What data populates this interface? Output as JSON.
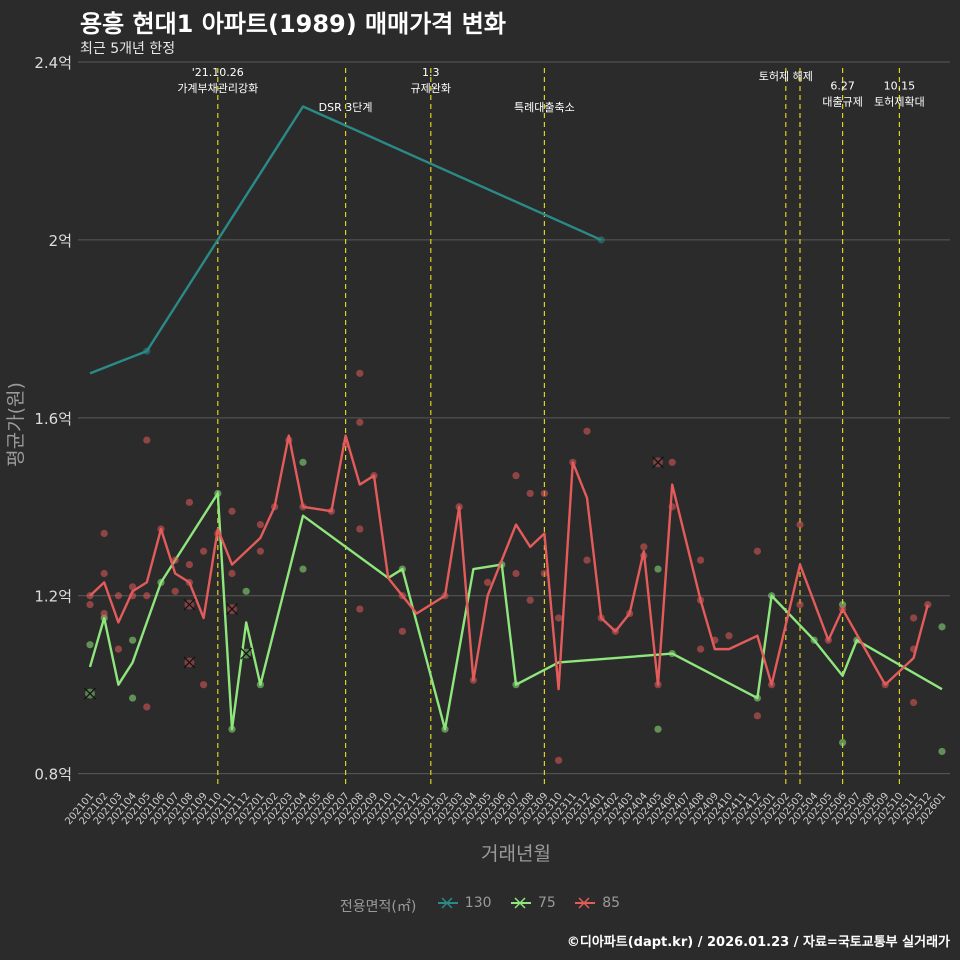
{
  "title": "용흥 현대1 아파트(1989) 매매가격 변화",
  "subtitle": "최근 5개년 한정",
  "caption": "©디아파트(dapt.kr) / 2026.01.23 / 자료=국토교통부 실거래가",
  "colors": {
    "background": "#2b2b2b",
    "grid": "#5a5a5a",
    "s130": "#2a8a87",
    "s75": "#8ee67c",
    "s85": "#e35b5b",
    "event_line": "#e0d020"
  },
  "chart_data": {
    "type": "line",
    "title": "용흥 현대1 아파트(1989) 매매가격 변화",
    "subtitle": "최근 5개년 한정",
    "xlabel": "거래년월",
    "ylabel": "평균가(원)",
    "ylim": [
      0.77,
      2.4
    ],
    "yticks": [
      0.8,
      1.2,
      1.6,
      2.0,
      2.4
    ],
    "ytick_labels": [
      "0.8억",
      "1.2억",
      "1.6억",
      "2억",
      "2.4억"
    ],
    "categories": [
      "202101",
      "202102",
      "202103",
      "202104",
      "202105",
      "202106",
      "202107",
      "202108",
      "202109",
      "202110",
      "202111",
      "202112",
      "202201",
      "202202",
      "202203",
      "202204",
      "202205",
      "202206",
      "202207",
      "202208",
      "202209",
      "202210",
      "202211",
      "202212",
      "202301",
      "202302",
      "202303",
      "202304",
      "202305",
      "202306",
      "202307",
      "202308",
      "202309",
      "202310",
      "202311",
      "202312",
      "202401",
      "202402",
      "202403",
      "202404",
      "202405",
      "202406",
      "202407",
      "202408",
      "202409",
      "202410",
      "202411",
      "202412",
      "202501",
      "202502",
      "202503",
      "202504",
      "202505",
      "202506",
      "202507",
      "202508",
      "202509",
      "202510",
      "202511",
      "202512",
      "202601"
    ],
    "legend_title": "전용면적(㎡)",
    "series": [
      {
        "name": "130",
        "color": "#2a8a87",
        "line": [
          [
            "202101",
            1.7
          ],
          [
            "202105",
            1.75
          ],
          [
            "202204",
            2.3
          ],
          [
            "202401",
            2.0
          ]
        ],
        "points": [
          [
            "202105",
            1.75
          ],
          [
            "202401",
            2.0
          ]
        ],
        "crosses": []
      },
      {
        "name": "75",
        "color": "#8ee67c",
        "line": [
          [
            "202101",
            1.04
          ],
          [
            "202102",
            1.15
          ],
          [
            "202103",
            1.0
          ],
          [
            "202104",
            1.05
          ],
          [
            "202106",
            1.23
          ],
          [
            "202110",
            1.43
          ],
          [
            "202111",
            0.9
          ],
          [
            "202112",
            1.14
          ],
          [
            "202201",
            1.0
          ],
          [
            "202204",
            1.38
          ],
          [
            "202210",
            1.24
          ],
          [
            "202211",
            1.26
          ],
          [
            "202302",
            0.9
          ],
          [
            "202304",
            1.26
          ],
          [
            "202306",
            1.27
          ],
          [
            "202307",
            1.0
          ],
          [
            "202310",
            1.05
          ],
          [
            "202406",
            1.07
          ],
          [
            "202412",
            0.97
          ],
          [
            "202501",
            1.2
          ],
          [
            "202504",
            1.1
          ],
          [
            "202506",
            1.02
          ],
          [
            "202507",
            1.1
          ],
          [
            "202601",
            0.99
          ]
        ],
        "points": [
          [
            "202101",
            1.09
          ],
          [
            "202102",
            1.15
          ],
          [
            "202104",
            1.1
          ],
          [
            "202104",
            0.97
          ],
          [
            "202106",
            1.23
          ],
          [
            "202110",
            1.43
          ],
          [
            "202111",
            0.9
          ],
          [
            "202112",
            1.21
          ],
          [
            "202201",
            1.0
          ],
          [
            "202204",
            1.5
          ],
          [
            "202204",
            1.26
          ],
          [
            "202211",
            1.26
          ],
          [
            "202302",
            0.9
          ],
          [
            "202306",
            1.27
          ],
          [
            "202307",
            1.0
          ],
          [
            "202405",
            1.26
          ],
          [
            "202405",
            0.9
          ],
          [
            "202406",
            1.07
          ],
          [
            "202412",
            0.97
          ],
          [
            "202501",
            1.2
          ],
          [
            "202504",
            1.1
          ],
          [
            "202506",
            1.18
          ],
          [
            "202506",
            0.87
          ],
          [
            "202507",
            1.1
          ],
          [
            "202601",
            1.13
          ],
          [
            "202601",
            0.85
          ]
        ],
        "crosses": [
          [
            "202101",
            0.98
          ],
          [
            "202112",
            1.07
          ]
        ]
      },
      {
        "name": "85",
        "color": "#e35b5b",
        "line": [
          [
            "202101",
            1.2
          ],
          [
            "202102",
            1.23
          ],
          [
            "202103",
            1.14
          ],
          [
            "202104",
            1.21
          ],
          [
            "202105",
            1.23
          ],
          [
            "202106",
            1.35
          ],
          [
            "202107",
            1.25
          ],
          [
            "202108",
            1.23
          ],
          [
            "202109",
            1.15
          ],
          [
            "202110",
            1.35
          ],
          [
            "202111",
            1.27
          ],
          [
            "202201",
            1.33
          ],
          [
            "202202",
            1.4
          ],
          [
            "202203",
            1.56
          ],
          [
            "202204",
            1.4
          ],
          [
            "202206",
            1.39
          ],
          [
            "202207",
            1.56
          ],
          [
            "202208",
            1.45
          ],
          [
            "202209",
            1.47
          ],
          [
            "202210",
            1.24
          ],
          [
            "202212",
            1.16
          ],
          [
            "202302",
            1.2
          ],
          [
            "202303",
            1.4
          ],
          [
            "202304",
            1.01
          ],
          [
            "202305",
            1.2
          ],
          [
            "202307",
            1.36
          ],
          [
            "202308",
            1.31
          ],
          [
            "202309",
            1.34
          ],
          [
            "202310",
            0.99
          ],
          [
            "202311",
            1.5
          ],
          [
            "202312",
            1.42
          ],
          [
            "202401",
            1.15
          ],
          [
            "202402",
            1.12
          ],
          [
            "202403",
            1.16
          ],
          [
            "202404",
            1.3
          ],
          [
            "202405",
            1.0
          ],
          [
            "202406",
            1.45
          ],
          [
            "202408",
            1.19
          ],
          [
            "202409",
            1.08
          ],
          [
            "202410",
            1.08
          ],
          [
            "202412",
            1.11
          ],
          [
            "202501",
            1.0
          ],
          [
            "202503",
            1.27
          ],
          [
            "202505",
            1.1
          ],
          [
            "202506",
            1.17
          ],
          [
            "202509",
            1.0
          ],
          [
            "202511",
            1.06
          ],
          [
            "202512",
            1.18
          ]
        ],
        "points": [
          [
            "202101",
            1.18
          ],
          [
            "202101",
            1.2
          ],
          [
            "202102",
            1.25
          ],
          [
            "202102",
            1.34
          ],
          [
            "202102",
            1.16
          ],
          [
            "202103",
            1.08
          ],
          [
            "202103",
            1.2
          ],
          [
            "202104",
            1.22
          ],
          [
            "202104",
            1.2
          ],
          [
            "202105",
            1.55
          ],
          [
            "202105",
            0.95
          ],
          [
            "202105",
            1.2
          ],
          [
            "202106",
            1.35
          ],
          [
            "202107",
            1.21
          ],
          [
            "202107",
            1.28
          ],
          [
            "202108",
            1.41
          ],
          [
            "202108",
            1.27
          ],
          [
            "202108",
            1.23
          ],
          [
            "202109",
            1.3
          ],
          [
            "202109",
            1.0
          ],
          [
            "202110",
            1.34
          ],
          [
            "202111",
            1.39
          ],
          [
            "202111",
            1.25
          ],
          [
            "202201",
            1.3
          ],
          [
            "202201",
            1.36
          ],
          [
            "202202",
            1.4
          ],
          [
            "202203",
            1.55
          ],
          [
            "202204",
            1.4
          ],
          [
            "202206",
            1.39
          ],
          [
            "202207",
            1.54
          ],
          [
            "202208",
            1.7
          ],
          [
            "202208",
            1.59
          ],
          [
            "202208",
            1.35
          ],
          [
            "202208",
            1.17
          ],
          [
            "202209",
            1.47
          ],
          [
            "202211",
            1.2
          ],
          [
            "202211",
            1.12
          ],
          [
            "202302",
            1.2
          ],
          [
            "202303",
            1.4
          ],
          [
            "202304",
            1.01
          ],
          [
            "202305",
            1.23
          ],
          [
            "202307",
            1.47
          ],
          [
            "202307",
            1.25
          ],
          [
            "202308",
            1.43
          ],
          [
            "202308",
            1.19
          ],
          [
            "202309",
            1.43
          ],
          [
            "202309",
            1.25
          ],
          [
            "202310",
            1.15
          ],
          [
            "202310",
            0.83
          ],
          [
            "202311",
            1.5
          ],
          [
            "202312",
            1.57
          ],
          [
            "202312",
            1.28
          ],
          [
            "202401",
            1.15
          ],
          [
            "202402",
            1.12
          ],
          [
            "202403",
            1.16
          ],
          [
            "202404",
            1.31
          ],
          [
            "202404",
            1.29
          ],
          [
            "202405",
            1.0
          ],
          [
            "202406",
            1.5
          ],
          [
            "202406",
            1.4
          ],
          [
            "202408",
            1.28
          ],
          [
            "202408",
            1.19
          ],
          [
            "202408",
            1.08
          ],
          [
            "202409",
            1.1
          ],
          [
            "202410",
            1.11
          ],
          [
            "202412",
            1.3
          ],
          [
            "202412",
            0.93
          ],
          [
            "202501",
            1.0
          ],
          [
            "202503",
            1.36
          ],
          [
            "202503",
            1.18
          ],
          [
            "202505",
            1.1
          ],
          [
            "202506",
            1.17
          ],
          [
            "202509",
            1.0
          ],
          [
            "202511",
            1.15
          ],
          [
            "202511",
            1.08
          ],
          [
            "202511",
            0.96
          ],
          [
            "202512",
            1.18
          ]
        ],
        "crosses": [
          [
            "202108",
            1.05
          ],
          [
            "202108",
            1.18
          ],
          [
            "202111",
            1.17
          ],
          [
            "202405",
            1.5
          ]
        ]
      }
    ],
    "events": [
      {
        "month": "202110",
        "label": "'21.10.26\n가계부채관리강화",
        "label_y": 2.35
      },
      {
        "month": "202207",
        "label": "DSR 3단계",
        "label_y": 2.29
      },
      {
        "month": "202301",
        "label": "1.3\n규제완화",
        "label_y": 2.35
      },
      {
        "month": "202309",
        "label": "특례대출축소",
        "label_y": 2.29
      },
      {
        "month": "202502",
        "label": "토허제 해제",
        "label_y": 2.36
      },
      {
        "month": "202503",
        "label": "",
        "label_y": 0
      },
      {
        "month": "202506",
        "label": "6.27\n대출규제",
        "label_y": 2.32
      },
      {
        "month": "202510",
        "label": "10.15\n토허제확대",
        "label_y": 2.32
      }
    ]
  }
}
